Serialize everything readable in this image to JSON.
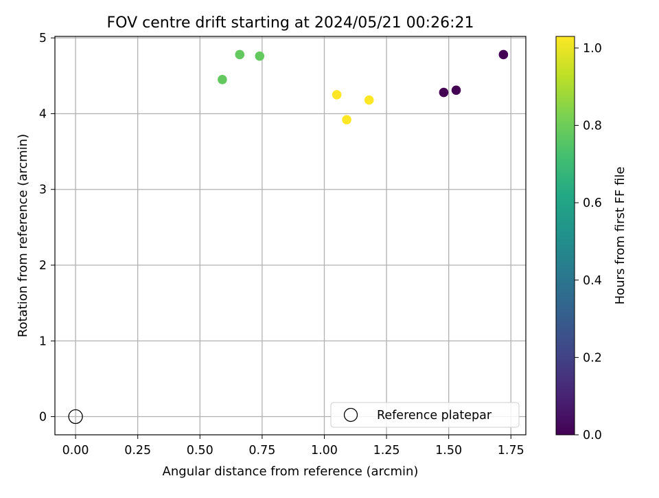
{
  "chart_data": {
    "type": "scatter",
    "title": "FOV centre drift starting at 2024/05/21 00:26:21",
    "xlabel": "Angular distance from reference (arcmin)",
    "ylabel": "Rotation from reference (arcmin)",
    "xlim": [
      -0.083,
      1.81
    ],
    "ylim": [
      -0.24,
      5.02
    ],
    "xticks": [
      "0.00",
      "0.25",
      "0.50",
      "0.75",
      "1.00",
      "1.25",
      "1.50",
      "1.75"
    ],
    "xtick_values": [
      0,
      0.25,
      0.5,
      0.75,
      1.0,
      1.25,
      1.5,
      1.75
    ],
    "yticks": [
      "0",
      "1",
      "2",
      "3",
      "4",
      "5"
    ],
    "ytick_values": [
      0,
      1,
      2,
      3,
      4,
      5
    ],
    "grid": true,
    "legend": {
      "placement": "lower-right",
      "entries": [
        "Reference platepar"
      ]
    },
    "reference_point": {
      "x": 0.0,
      "y": 0.0,
      "marker": "hollow-circle"
    },
    "points": [
      {
        "x": 1.48,
        "y": 4.28,
        "hours": 0.0
      },
      {
        "x": 1.53,
        "y": 4.31,
        "hours": 0.0
      },
      {
        "x": 1.72,
        "y": 4.78,
        "hours": 0.0
      },
      {
        "x": 0.59,
        "y": 4.45,
        "hours": 0.78
      },
      {
        "x": 0.66,
        "y": 4.78,
        "hours": 0.78
      },
      {
        "x": 0.74,
        "y": 4.76,
        "hours": 0.78
      },
      {
        "x": 1.05,
        "y": 4.25,
        "hours": 1.03
      },
      {
        "x": 1.09,
        "y": 3.92,
        "hours": 1.03
      },
      {
        "x": 1.18,
        "y": 4.18,
        "hours": 1.03
      }
    ],
    "colorbar": {
      "label": "Hours from first FF file",
      "range": [
        0.0,
        1.03
      ],
      "ticks": [
        "0.0",
        "0.2",
        "0.4",
        "0.6",
        "0.8",
        "1.0"
      ],
      "tick_values": [
        0.0,
        0.2,
        0.4,
        0.6,
        0.8,
        1.0
      ],
      "colormap": "viridis"
    }
  }
}
